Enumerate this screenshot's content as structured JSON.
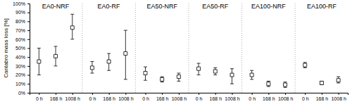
{
  "chart_data": {
    "type": "errorbar",
    "marker": "square",
    "color": "black",
    "ylabel": "Cantabro mass loss [%]",
    "categories": [
      "0 h",
      "168 h",
      "1008 h"
    ],
    "series": [
      {
        "name": "EA0-NRF",
        "values": [
          35,
          41,
          73
        ],
        "lower": [
          20,
          30,
          60
        ],
        "upper": [
          50,
          52,
          88
        ]
      },
      {
        "name": "EA0-RF",
        "values": [
          28,
          35,
          44
        ],
        "lower": [
          22,
          25,
          15
        ],
        "upper": [
          35,
          44,
          70
        ]
      },
      {
        "name": "EA50-NRF",
        "values": [
          22,
          15,
          18
        ],
        "lower": [
          14,
          12,
          13
        ],
        "upper": [
          29,
          18,
          22
        ]
      },
      {
        "name": "EA50-RF",
        "values": [
          27,
          24,
          20
        ],
        "lower": [
          20,
          20,
          10
        ],
        "upper": [
          33,
          28,
          27
        ]
      },
      {
        "name": "EA100-NRF",
        "values": [
          20,
          10,
          9
        ],
        "lower": [
          15,
          7,
          6
        ],
        "upper": [
          25,
          13,
          12
        ]
      },
      {
        "name": "EA100-RF",
        "values": [
          31,
          11,
          14
        ],
        "lower": [
          28,
          9,
          11
        ],
        "upper": [
          34,
          13,
          18
        ]
      }
    ],
    "ylim": [
      0,
      100
    ],
    "yticks": [
      {
        "value": 0,
        "label": "0%"
      },
      {
        "value": 10,
        "label": "10%"
      },
      {
        "value": 20,
        "label": "20%"
      },
      {
        "value": 30,
        "label": "30%"
      },
      {
        "value": 40,
        "label": "40%"
      },
      {
        "value": 50,
        "label": "50%"
      },
      {
        "value": 60,
        "label": "60%"
      },
      {
        "value": 70,
        "label": "70%"
      },
      {
        "value": 80,
        "label": "80%"
      },
      {
        "value": 90,
        "label": "90%"
      },
      {
        "value": 100,
        "label": "100%"
      }
    ]
  }
}
